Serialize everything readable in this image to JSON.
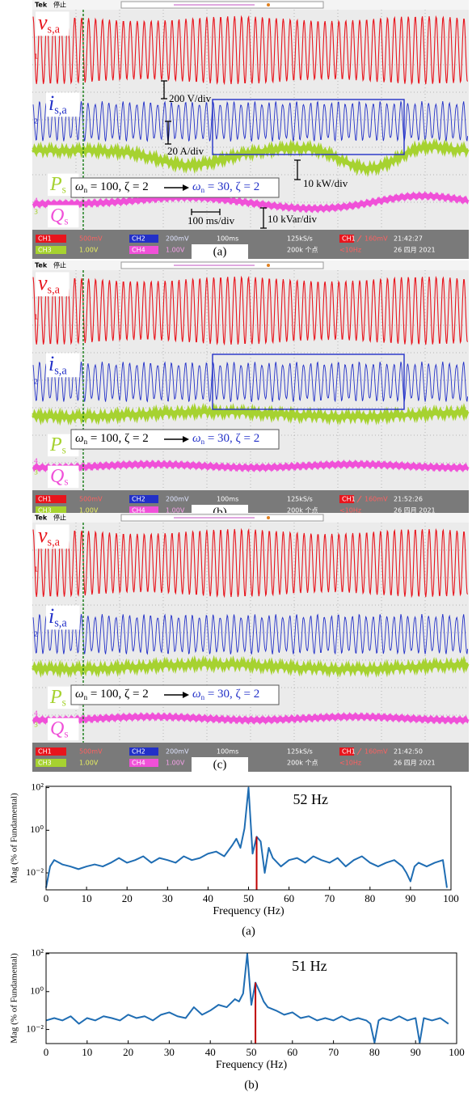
{
  "scopes": [
    {
      "header": {
        "brand": "Tek",
        "state": "停止"
      },
      "labels": {
        "v": {
          "symbol": "v",
          "subscript": "s,a"
        },
        "i": {
          "symbol": "i",
          "subscript": "s,a"
        },
        "p": {
          "symbol": "P",
          "subscript": "s"
        },
        "q": {
          "symbol": "Q",
          "subscript": "s"
        }
      },
      "transition": {
        "from": {
          "symbol": "ω",
          "subscript": "n",
          "rest": " = 100, ζ = 2"
        },
        "to": {
          "symbol": "ω",
          "subscript": "n",
          "rest": " = 30, ζ = 2"
        }
      },
      "scales": {
        "voltage": "200 V/div",
        "current": "20 A/div",
        "power": "10 kW/div",
        "time": "100 ms/div",
        "reactive": "10 kVar/div"
      },
      "markers": [
        "1",
        "2",
        "4",
        "3"
      ],
      "status": {
        "ch1": "CH1",
        "ch1_scale": "500mV",
        "ch2": "CH2",
        "ch2_scale": "200mV",
        "timebase": "100ms",
        "rate": "125kS/s",
        "trig_ch": "CH1",
        "trig_level": "160mV",
        "time": "21:42:27",
        "ch3": "CH3",
        "ch3_scale": "1.00V",
        "ch4": "CH4",
        "ch4_scale": "1.00V",
        "points": "200k 个点",
        "freq": "<10Hz",
        "date": "26 四月 2021"
      },
      "caption": "(a)"
    },
    {
      "header": {
        "brand": "Tek",
        "state": "停止"
      },
      "labels": {
        "v": {
          "symbol": "v",
          "subscript": "s,a"
        },
        "i": {
          "symbol": "i",
          "subscript": "s,a"
        },
        "p": {
          "symbol": "P",
          "subscript": "s"
        },
        "q": {
          "symbol": "Q",
          "subscript": "s"
        }
      },
      "transition": {
        "from": {
          "symbol": "ω",
          "subscript": "n",
          "rest": " = 100, ζ = 2"
        },
        "to": {
          "symbol": "ω",
          "subscript": "n",
          "rest": " = 30, ζ = 2"
        }
      },
      "markers": [
        "1",
        "2",
        "4",
        "3"
      ],
      "status": {
        "ch1": "CH1",
        "ch1_scale": "500mV",
        "ch2": "CH2",
        "ch2_scale": "200mV",
        "timebase": "100ms",
        "rate": "125kS/s",
        "trig_ch": "CH1",
        "trig_level": "160mV",
        "time": "21:52:26",
        "ch3": "CH3",
        "ch3_scale": "1.00V",
        "ch4": "CH4",
        "ch4_scale": "1.00V",
        "points": "200k 个点",
        "freq": "<10Hz",
        "date": "26 四月 2021"
      },
      "caption": "(b)"
    },
    {
      "header": {
        "brand": "Tek",
        "state": "停止"
      },
      "labels": {
        "v": {
          "symbol": "v",
          "subscript": "s,a"
        },
        "i": {
          "symbol": "i",
          "subscript": "s,a"
        },
        "p": {
          "symbol": "P",
          "subscript": "s"
        },
        "q": {
          "symbol": "Q",
          "subscript": "s"
        }
      },
      "transition": {
        "from": {
          "symbol": "ω",
          "subscript": "n",
          "rest": " = 100, ζ = 2"
        },
        "to": {
          "symbol": "ω",
          "subscript": "n",
          "rest": " = 30, ζ = 2"
        }
      },
      "markers": [
        "1",
        "2",
        "4",
        "3"
      ],
      "status": {
        "ch1": "CH1",
        "ch1_scale": "500mV",
        "ch2": "CH2",
        "ch2_scale": "200mV",
        "timebase": "100ms",
        "rate": "125kS/s",
        "trig_ch": "CH1",
        "trig_level": "160mV",
        "time": "21:42:50",
        "ch3": "CH3",
        "ch3_scale": "1.00V",
        "ch4": "CH4",
        "ch4_scale": "1.00V",
        "points": "200k 个点",
        "freq": "<10Hz",
        "date": "26 四月 2021"
      },
      "caption": "(c)"
    }
  ],
  "chart_data": [
    {
      "type": "line",
      "xlabel": "Frequency (Hz)",
      "ylabel": "Mag (% of Fundamental)",
      "caption": "(a)",
      "yscale": "log",
      "color": "#1f6db3",
      "xlim": [
        0,
        100
      ],
      "xticks": [
        0,
        10,
        20,
        30,
        40,
        50,
        60,
        70,
        80,
        90,
        100
      ],
      "ylim": [
        0.0016,
        115
      ],
      "yticks": [
        {
          "value": 0.01,
          "label": "10⁻²"
        },
        {
          "value": 1,
          "label": "10⁰"
        },
        {
          "value": 100,
          "label": "10²"
        }
      ],
      "x": [
        0,
        1,
        2,
        4,
        6,
        8,
        10,
        12,
        14,
        16,
        18,
        20,
        22,
        24,
        26,
        28,
        30,
        32,
        34,
        36,
        38,
        40,
        42,
        44,
        46,
        47,
        48,
        49,
        50,
        51,
        52,
        53,
        54,
        55,
        56,
        58,
        60,
        62,
        64,
        66,
        68,
        70,
        72,
        74,
        76,
        78,
        80,
        82,
        84,
        86,
        88,
        89,
        90,
        91,
        92,
        94,
        96,
        98,
        99
      ],
      "values": [
        0.002,
        0.02,
        0.04,
        0.025,
        0.02,
        0.015,
        0.02,
        0.025,
        0.02,
        0.03,
        0.05,
        0.03,
        0.04,
        0.06,
        0.03,
        0.05,
        0.04,
        0.03,
        0.06,
        0.04,
        0.05,
        0.08,
        0.1,
        0.06,
        0.2,
        0.4,
        0.15,
        1.2,
        100,
        0.08,
        0.5,
        0.3,
        0.01,
        0.15,
        0.05,
        0.02,
        0.04,
        0.05,
        0.03,
        0.06,
        0.04,
        0.03,
        0.05,
        0.02,
        0.04,
        0.06,
        0.03,
        0.02,
        0.03,
        0.04,
        0.02,
        0.01,
        0.004,
        0.02,
        0.03,
        0.02,
        0.03,
        0.04,
        0.002
      ],
      "highlight": {
        "x": 52,
        "y": 0.5,
        "label": "52 Hz",
        "color": "#c00000"
      }
    },
    {
      "type": "line",
      "xlabel": "Frequency (Hz)",
      "ylabel": "Mag (% of Fundamental)",
      "caption": "(b)",
      "yscale": "log",
      "color": "#1f6db3",
      "xlim": [
        0,
        100
      ],
      "xticks": [
        0,
        10,
        20,
        30,
        40,
        50,
        60,
        70,
        80,
        90,
        100
      ],
      "ylim": [
        0.0018,
        110
      ],
      "yticks": [
        {
          "value": 0.01,
          "label": "10⁻²"
        },
        {
          "value": 1,
          "label": "10⁰"
        },
        {
          "value": 100,
          "label": "10²"
        }
      ],
      "x": [
        0,
        2,
        4,
        6,
        8,
        10,
        12,
        14,
        16,
        18,
        20,
        22,
        24,
        26,
        28,
        30,
        32,
        34,
        36,
        38,
        40,
        42,
        44,
        46,
        47,
        48,
        49,
        50,
        51,
        52,
        53,
        54,
        56,
        58,
        60,
        62,
        64,
        66,
        68,
        70,
        72,
        74,
        76,
        78,
        79,
        80,
        81,
        82,
        84,
        86,
        88,
        90,
        91,
        92,
        94,
        96,
        98
      ],
      "values": [
        0.03,
        0.04,
        0.03,
        0.05,
        0.02,
        0.04,
        0.03,
        0.05,
        0.04,
        0.03,
        0.06,
        0.04,
        0.05,
        0.03,
        0.06,
        0.08,
        0.05,
        0.04,
        0.15,
        0.06,
        0.1,
        0.2,
        0.15,
        0.4,
        0.3,
        0.8,
        100,
        0.2,
        3,
        1,
        0.3,
        0.15,
        0.1,
        0.06,
        0.08,
        0.04,
        0.05,
        0.03,
        0.04,
        0.03,
        0.05,
        0.03,
        0.04,
        0.03,
        0.02,
        0.002,
        0.03,
        0.04,
        0.03,
        0.05,
        0.03,
        0.04,
        0.002,
        0.04,
        0.03,
        0.04,
        0.02
      ],
      "highlight": {
        "x": 51,
        "y": 3,
        "label": "51 Hz",
        "color": "#c00000"
      }
    }
  ]
}
